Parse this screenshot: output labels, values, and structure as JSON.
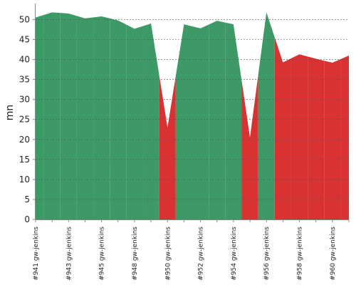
{
  "chart_data": {
    "type": "area",
    "y_label": "mn",
    "categories": [
      "#941 gw-jenkins",
      null,
      "#943 gw-jenkins",
      null,
      "#945 gw-jenkins",
      null,
      "#948 gw-jenkins",
      null,
      "#950 gw-jenkins",
      null,
      "#952 gw-jenkins",
      null,
      "#954 gw-jenkins",
      null,
      "#956 gw-jenkins",
      null,
      "#958 gw-jenkins",
      null,
      "#960 gw-jenkins",
      null
    ],
    "values": [
      50.5,
      51.8,
      51.5,
      50.3,
      50.8,
      49.8,
      47.7,
      49.0,
      23.0,
      48.8,
      47.8,
      49.7,
      48.8,
      20.5,
      51.8,
      39.3,
      41.3,
      40.2,
      39.2,
      41.0
    ],
    "colors": [
      "#3d9a66",
      "#3d9a66",
      "#3d9a66",
      "#3d9a66",
      "#3d9a66",
      "#3d9a66",
      "#3d9a66",
      "#3d9a66",
      "#d93232",
      "#3d9a66",
      "#3d9a66",
      "#3d9a66",
      "#3d9a66",
      "#d93232",
      "#3d9a66",
      "#d93232",
      "#d93232",
      "#d93232",
      "#d93232",
      "#d93232"
    ],
    "ylim": [
      0,
      54
    ],
    "yticks": [
      0,
      5,
      10,
      15,
      20,
      25,
      30,
      35,
      40,
      45,
      50
    ],
    "grid": true
  }
}
